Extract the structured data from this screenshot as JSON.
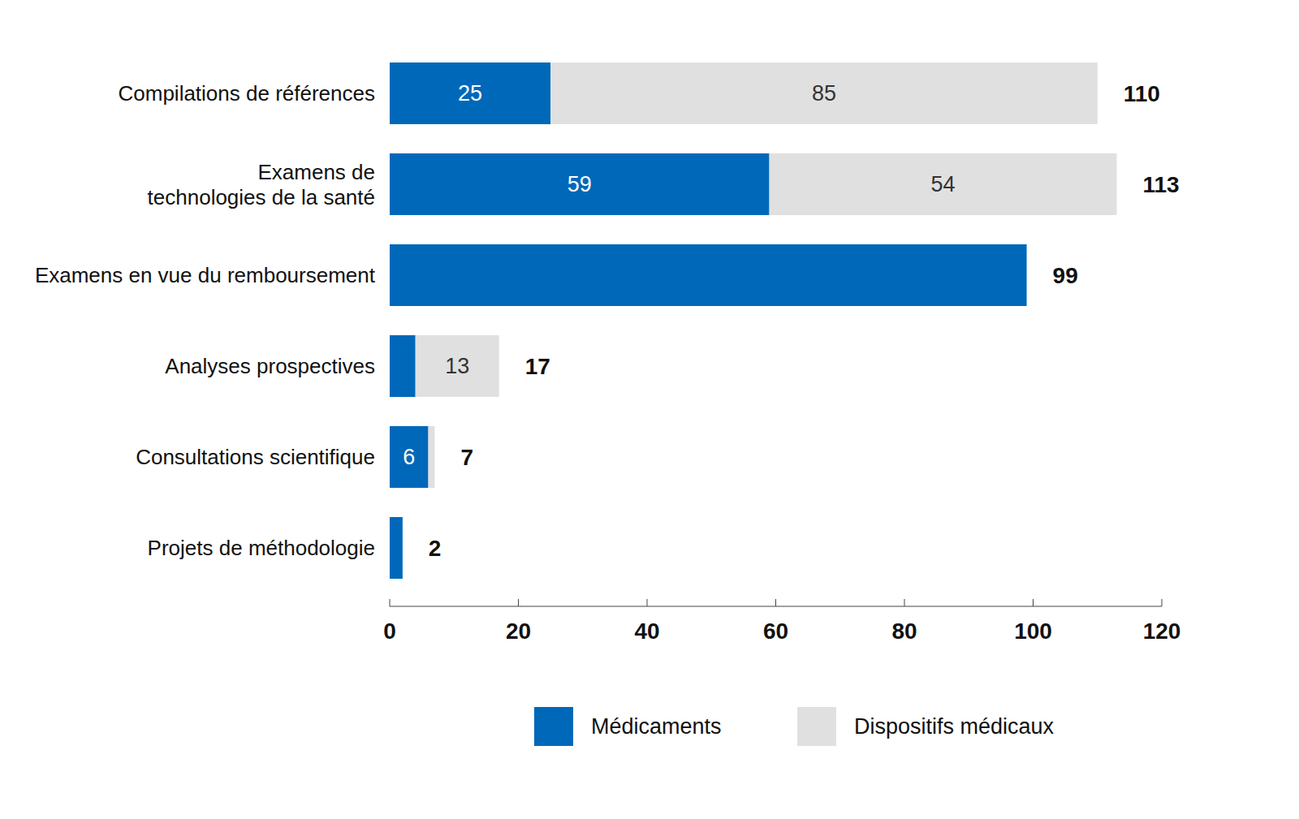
{
  "chart_data": {
    "type": "bar",
    "orientation": "horizontal",
    "stacked": true,
    "data_labels": true,
    "legend": "bottom",
    "categories": [
      "Compilations de références",
      "Examens de\ntechnologies de la santé",
      "Examens en vue du remboursement",
      "Analyses prospectives",
      "Consultations scientifique",
      "Projets de méthodologie"
    ],
    "series": [
      {
        "name": "Médicaments",
        "color": "#0068b9",
        "values": [
          25,
          59,
          99,
          4,
          6,
          2
        ]
      },
      {
        "name": "Dispositifs médicaux",
        "color": "#e0e0e0",
        "values": [
          85,
          54,
          0,
          13,
          1,
          0
        ]
      }
    ],
    "totals": [
      110,
      113,
      99,
      17,
      7,
      2
    ],
    "xlim": [
      0,
      120
    ],
    "xticks": [
      0,
      20,
      40,
      60,
      80,
      100,
      120
    ]
  }
}
